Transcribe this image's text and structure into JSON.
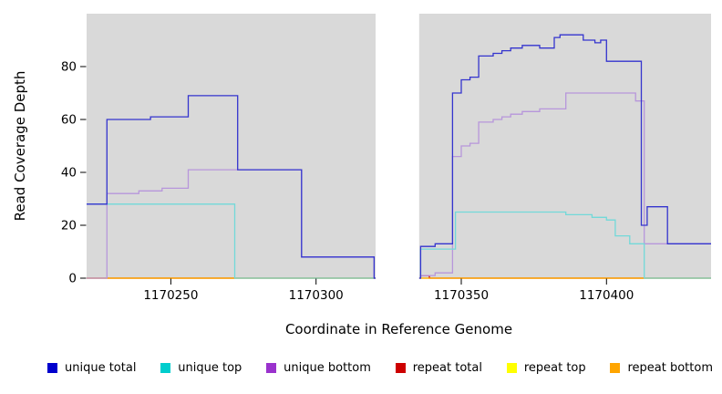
{
  "figure": {
    "background": "#ffffff"
  },
  "chart_data": {
    "type": "line",
    "subtype": "step",
    "title": "",
    "xlabel": "Coordinate in Reference Genome",
    "ylabel": "Read Coverage Depth",
    "xlim": [
      1170221,
      1170436
    ],
    "ylim": [
      0,
      100
    ],
    "xticks": [
      1170250,
      1170300,
      1170350,
      1170400
    ],
    "yticks": [
      0,
      20,
      40,
      60,
      80
    ],
    "grid": false,
    "legend_position": "bottom",
    "panel_bg": "#d9d9d9",
    "tick_color": "#000000",
    "masked_region": {
      "from": 1170320.5,
      "to": 1170335.5,
      "color": "#ffffff"
    },
    "draw_order": [
      "repeat top",
      "repeat total",
      "repeat bottom",
      "unique bottom",
      "unique top",
      "unique total"
    ],
    "series": [
      {
        "name": "unique total",
        "color": "#3434CE",
        "legend_color": "#0000CD",
        "points": [
          [
            1170221,
            28
          ],
          [
            1170228,
            60
          ],
          [
            1170243,
            61
          ],
          [
            1170256,
            69
          ],
          [
            1170273,
            41
          ],
          [
            1170295,
            8
          ],
          [
            1170320,
            0
          ],
          [
            1170336,
            12
          ],
          [
            1170341,
            13
          ],
          [
            1170347,
            70
          ],
          [
            1170350,
            75
          ],
          [
            1170353,
            76
          ],
          [
            1170356,
            84
          ],
          [
            1170361,
            85
          ],
          [
            1170364,
            86
          ],
          [
            1170367,
            87
          ],
          [
            1170371,
            88
          ],
          [
            1170377,
            87
          ],
          [
            1170382,
            91
          ],
          [
            1170384,
            92
          ],
          [
            1170392,
            90
          ],
          [
            1170396,
            89
          ],
          [
            1170398,
            90
          ],
          [
            1170400,
            82
          ],
          [
            1170412,
            20
          ],
          [
            1170414,
            27
          ],
          [
            1170421,
            13
          ]
        ]
      },
      {
        "name": "unique top",
        "color": "#72D9D9",
        "legend_color": "#00CDCD",
        "points": [
          [
            1170221,
            28
          ],
          [
            1170272,
            0
          ],
          [
            1170336,
            11
          ],
          [
            1170348,
            25
          ],
          [
            1170386,
            24
          ],
          [
            1170395,
            23
          ],
          [
            1170400,
            22
          ],
          [
            1170403,
            16
          ],
          [
            1170408,
            13
          ],
          [
            1170413,
            0
          ]
        ]
      },
      {
        "name": "unique bottom",
        "color": "#B796DB",
        "legend_color": "#9A32CD",
        "points": [
          [
            1170221,
            0
          ],
          [
            1170228,
            32
          ],
          [
            1170239,
            33
          ],
          [
            1170247,
            34
          ],
          [
            1170256,
            41
          ],
          [
            1170295,
            8
          ],
          [
            1170320,
            0
          ],
          [
            1170336,
            1
          ],
          [
            1170341,
            2
          ],
          [
            1170347,
            46
          ],
          [
            1170350,
            50
          ],
          [
            1170353,
            51
          ],
          [
            1170356,
            59
          ],
          [
            1170361,
            60
          ],
          [
            1170364,
            61
          ],
          [
            1170367,
            62
          ],
          [
            1170371,
            63
          ],
          [
            1170377,
            64
          ],
          [
            1170386,
            70
          ],
          [
            1170410,
            67
          ],
          [
            1170413,
            13
          ]
        ]
      },
      {
        "name": "repeat total",
        "color": "#CD0000",
        "legend_color": "#CD0000",
        "points": [
          [
            1170221,
            0
          ],
          [
            1170336,
            1
          ],
          [
            1170339,
            0
          ]
        ]
      },
      {
        "name": "repeat top",
        "color": "#FFFF00",
        "legend_color": "#FFFF00",
        "points": [
          [
            1170221,
            0
          ]
        ]
      },
      {
        "name": "repeat bottom",
        "color": "#FFA500",
        "legend_color": "#FFA500",
        "points": [
          [
            1170221,
            0
          ]
        ]
      }
    ]
  }
}
